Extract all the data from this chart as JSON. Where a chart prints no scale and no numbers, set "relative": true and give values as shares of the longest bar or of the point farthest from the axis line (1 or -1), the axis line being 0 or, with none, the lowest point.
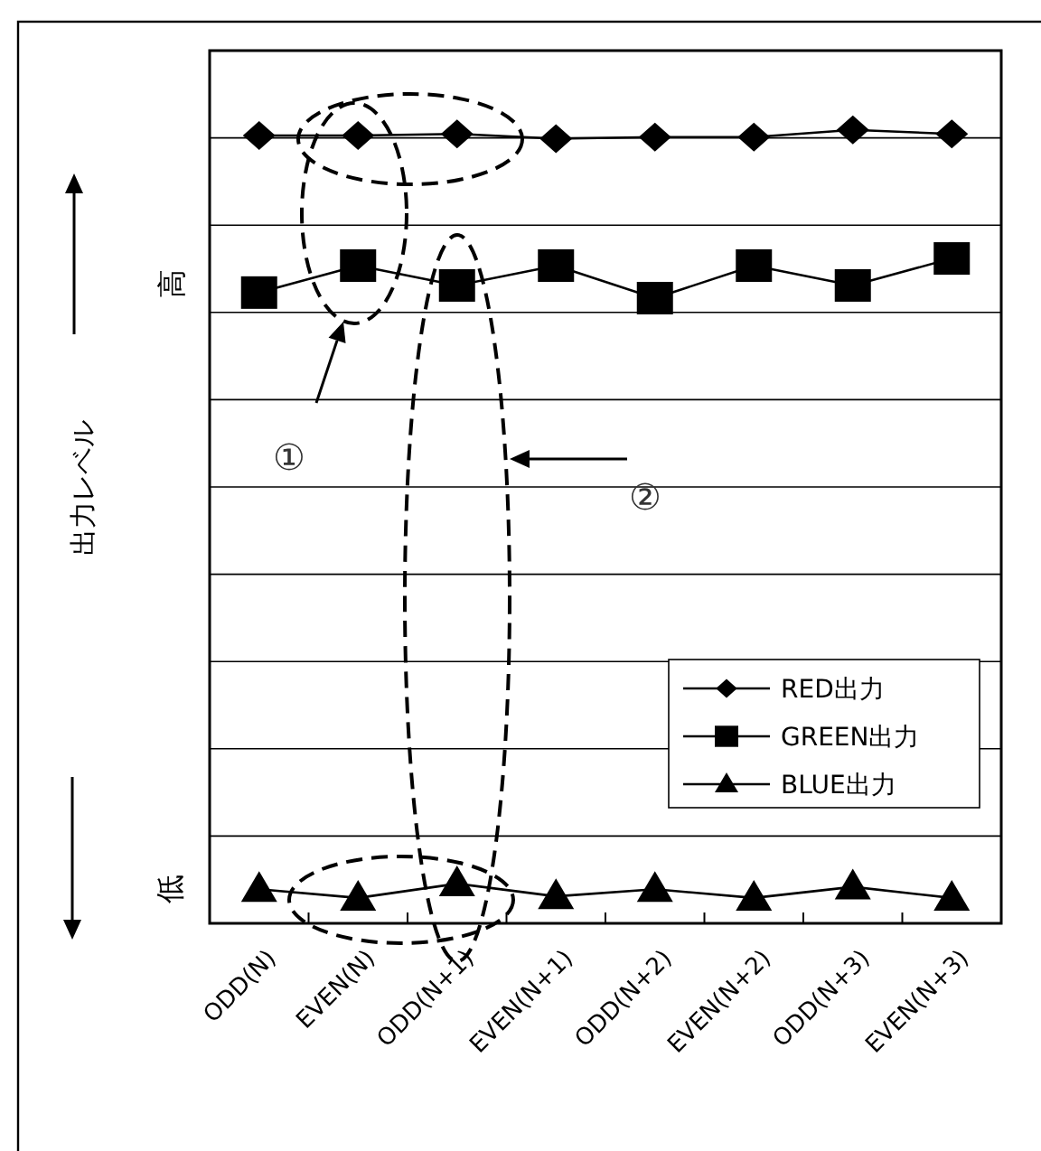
{
  "chart_data": {
    "type": "line",
    "relative": true,
    "grid": "y",
    "legend": "bottom right",
    "line_style": "solid",
    "ylabel": "出力レベル",
    "categories": [
      "ODD(N)",
      "EVEN(N)",
      "ODD(N+1)",
      "EVEN(N+1)",
      "ODD(N+2)",
      "EVEN(N+2)",
      "ODD(N+3)",
      "EVEN(N+3)"
    ],
    "series": [
      {
        "name": "RED出力",
        "color": "#000000",
        "marker": "diamond",
        "values": [
          0.993,
          0.993,
          0.995,
          0.989,
          0.991,
          0.991,
          1,
          0.995
        ]
      },
      {
        "name": "GREEN出力",
        "color": "#000000",
        "marker": "square",
        "values": [
          0.795,
          0.829,
          0.804,
          0.829,
          0.788,
          0.829,
          0.804,
          0.838
        ]
      },
      {
        "name": "BLUE出力",
        "color": "#000000",
        "marker": "triangle",
        "values": [
          0.043,
          0.032,
          0.05,
          0.034,
          0.043,
          0.032,
          0.046,
          0.032
        ]
      }
    ],
    "annotations": [
      "①",
      "②",
      "高",
      "低"
    ]
  }
}
